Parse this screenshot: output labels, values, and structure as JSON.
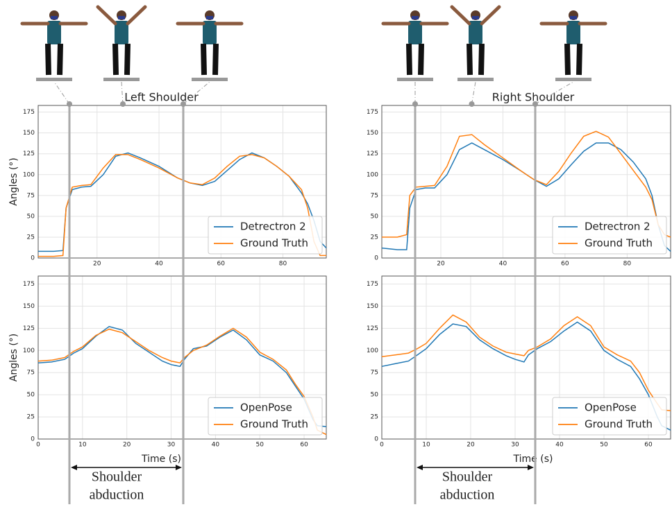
{
  "chart_data": [
    {
      "type": "line",
      "title": "Left Shoulder",
      "ylabel": "Angles (°)",
      "x": [
        1,
        6,
        9,
        10,
        12,
        15,
        18,
        22,
        26,
        30,
        34,
        40,
        46,
        50,
        54,
        58,
        62,
        66,
        70,
        74,
        78,
        82,
        86,
        88,
        90,
        92,
        94
      ],
      "series": [
        {
          "name": "Detrectron 2",
          "color": "#1f77b4",
          "values": [
            8,
            8,
            9,
            60,
            82,
            85,
            86,
            100,
            122,
            126,
            120,
            110,
            96,
            90,
            87,
            92,
            105,
            118,
            126,
            120,
            110,
            98,
            78,
            65,
            45,
            20,
            12
          ]
        },
        {
          "name": "Ground Truth",
          "color": "#ff7f0e",
          "values": [
            2,
            2,
            3,
            60,
            85,
            87,
            88,
            108,
            124,
            124,
            118,
            108,
            96,
            90,
            88,
            96,
            110,
            122,
            124,
            120,
            110,
            98,
            82,
            60,
            20,
            3,
            3
          ]
        }
      ],
      "xlim": [
        1,
        94
      ],
      "xticks": [
        20,
        40,
        60,
        80
      ],
      "ylim": [
        0,
        183
      ],
      "yticks": [
        0,
        25,
        50,
        75,
        100,
        125,
        150,
        175
      ],
      "grid": true,
      "legend": "lower right"
    },
    {
      "type": "line",
      "title": "Right Shoulder",
      "x": [
        1,
        6,
        9,
        10,
        12,
        15,
        18,
        22,
        26,
        30,
        34,
        40,
        46,
        50,
        54,
        58,
        62,
        66,
        70,
        74,
        78,
        82,
        86,
        88,
        90,
        92,
        94
      ],
      "series": [
        {
          "name": "Detrectron 2",
          "color": "#1f77b4",
          "values": [
            12,
            10,
            10,
            60,
            82,
            84,
            84,
            100,
            130,
            138,
            130,
            118,
            104,
            94,
            86,
            95,
            112,
            128,
            138,
            138,
            130,
            115,
            95,
            75,
            40,
            15,
            8
          ]
        },
        {
          "name": "Ground Truth",
          "color": "#ff7f0e",
          "values": [
            25,
            25,
            28,
            75,
            85,
            86,
            87,
            110,
            146,
            148,
            136,
            120,
            104,
            94,
            88,
            104,
            126,
            146,
            152,
            145,
            125,
            105,
            85,
            70,
            40,
            28,
            25
          ]
        }
      ],
      "xlim": [
        1,
        94
      ],
      "xticks": [
        20,
        40,
        60,
        80
      ],
      "ylim": [
        0,
        183
      ],
      "yticks": [
        0,
        25,
        50,
        75,
        100,
        125,
        150,
        175
      ],
      "grid": true,
      "legend": "lower right"
    },
    {
      "type": "line",
      "ylabel": "Angles (°)",
      "xlabel": "Time (s)",
      "annotation": [
        "Shoulder",
        "abduction"
      ],
      "x": [
        0,
        3,
        6,
        8,
        10,
        13,
        16,
        19,
        22,
        25,
        28,
        30,
        32,
        33,
        35,
        38,
        41,
        44,
        47,
        50,
        53,
        56,
        58,
        60,
        62,
        63,
        65
      ],
      "series": [
        {
          "name": "OpenPose",
          "color": "#1f77b4",
          "values": [
            86,
            87,
            90,
            97,
            102,
            116,
            127,
            123,
            108,
            98,
            88,
            84,
            82,
            90,
            102,
            105,
            115,
            123,
            112,
            95,
            88,
            75,
            60,
            45,
            22,
            15,
            14
          ]
        },
        {
          "name": "Ground Truth",
          "color": "#ff7f0e",
          "values": [
            88,
            89,
            92,
            99,
            104,
            117,
            124,
            120,
            110,
            100,
            92,
            88,
            86,
            92,
            100,
            106,
            116,
            125,
            115,
            98,
            90,
            78,
            62,
            48,
            25,
            10,
            5
          ]
        }
      ],
      "xlim": [
        0,
        65
      ],
      "xticks": [
        0,
        10,
        20,
        30,
        40,
        50,
        60
      ],
      "ylim": [
        0,
        184
      ],
      "yticks": [
        0,
        25,
        50,
        75,
        100,
        125,
        150,
        175
      ],
      "grid": true,
      "legend": "lower right"
    },
    {
      "type": "line",
      "xlabel": "Time (s)",
      "annotation": [
        "Shoulder",
        "abduction"
      ],
      "x": [
        0,
        3,
        6,
        8,
        10,
        13,
        16,
        19,
        22,
        25,
        28,
        30,
        32,
        33,
        35,
        38,
        41,
        44,
        47,
        50,
        53,
        56,
        58,
        60,
        62,
        63,
        65
      ],
      "series": [
        {
          "name": "OpenPose",
          "color": "#1f77b4",
          "values": [
            82,
            85,
            88,
            95,
            102,
            118,
            130,
            127,
            112,
            102,
            94,
            90,
            87,
            95,
            102,
            110,
            122,
            132,
            122,
            100,
            90,
            82,
            68,
            50,
            25,
            15,
            10
          ]
        },
        {
          "name": "Ground Truth",
          "color": "#ff7f0e",
          "values": [
            93,
            95,
            97,
            102,
            108,
            125,
            140,
            132,
            115,
            105,
            98,
            96,
            94,
            100,
            104,
            113,
            128,
            138,
            128,
            104,
            95,
            88,
            75,
            55,
            40,
            33,
            32
          ]
        }
      ],
      "xlim": [
        0,
        65
      ],
      "xticks": [
        0,
        10,
        20,
        30,
        40,
        50,
        60
      ],
      "ylim": [
        0,
        184
      ],
      "yticks": [
        0,
        25,
        50,
        75,
        100,
        125,
        150,
        175
      ],
      "grid": true,
      "legend": "lower right"
    }
  ]
}
